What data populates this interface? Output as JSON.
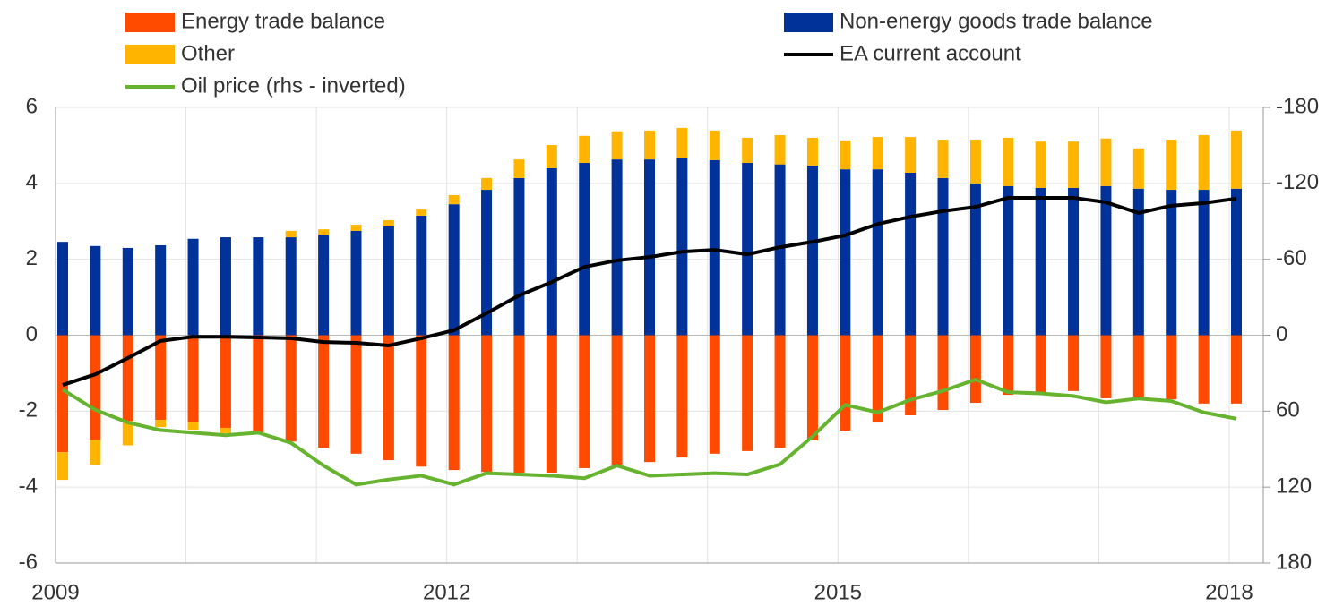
{
  "chart_data": {
    "type": "bar",
    "categories": [
      "2009",
      null,
      null,
      null,
      null,
      null,
      null,
      null,
      null,
      null,
      null,
      null,
      "2012",
      null,
      null,
      null,
      null,
      null,
      null,
      null,
      null,
      null,
      null,
      null,
      "2015",
      null,
      null,
      null,
      null,
      null,
      null,
      null,
      null,
      null,
      null,
      null,
      "2018"
    ],
    "ylim": [
      -6,
      6
    ],
    "yticks": [
      -6,
      -4,
      -2,
      0,
      2,
      4,
      6
    ],
    "y2lim": [
      180,
      -180
    ],
    "y2ticks": [
      -180,
      -120,
      -60,
      0,
      60,
      120,
      180
    ],
    "grid": true,
    "series": [
      {
        "name": "Energy trade balance",
        "type": "bar",
        "color": "#ff4b00",
        "values": [
          -3.08,
          -2.75,
          -2.26,
          -2.23,
          -2.3,
          -2.44,
          -2.56,
          -2.8,
          -2.96,
          -3.12,
          -3.29,
          -3.46,
          -3.55,
          -3.6,
          -3.62,
          -3.62,
          -3.5,
          -3.41,
          -3.34,
          -3.22,
          -3.12,
          -3.05,
          -2.96,
          -2.77,
          -2.51,
          -2.3,
          -2.11,
          -1.97,
          -1.78,
          -1.57,
          -1.52,
          -1.47,
          -1.66,
          -1.62,
          -1.69,
          -1.8,
          -1.8
        ]
      },
      {
        "name": "Non-energy goods trade balance",
        "type": "bar",
        "color": "#003299",
        "values": [
          2.46,
          2.35,
          2.3,
          2.37,
          2.54,
          2.58,
          2.58,
          2.58,
          2.65,
          2.75,
          2.87,
          3.15,
          3.45,
          3.83,
          4.14,
          4.4,
          4.54,
          4.63,
          4.63,
          4.68,
          4.61,
          4.54,
          4.5,
          4.47,
          4.37,
          4.37,
          4.28,
          4.14,
          4.0,
          3.93,
          3.88,
          3.88,
          3.93,
          3.86,
          3.83,
          3.83,
          3.86
        ]
      },
      {
        "name": "Other",
        "type": "bar",
        "color": "#ffb400",
        "values": [
          -0.73,
          -0.66,
          -0.64,
          -0.19,
          -0.19,
          -0.14,
          -0.05,
          0.17,
          0.14,
          0.16,
          0.16,
          0.16,
          0.24,
          0.31,
          0.49,
          0.61,
          0.71,
          0.74,
          0.76,
          0.78,
          0.78,
          0.66,
          0.77,
          0.73,
          0.76,
          0.85,
          0.94,
          1.01,
          1.15,
          1.27,
          1.22,
          1.22,
          1.25,
          1.06,
          1.32,
          1.44,
          1.53
        ]
      },
      {
        "name": "EA current account",
        "type": "line",
        "color": "#000000",
        "values": [
          -1.31,
          -1.03,
          -0.6,
          -0.15,
          -0.04,
          -0.04,
          -0.06,
          -0.08,
          -0.18,
          -0.2,
          -0.27,
          -0.08,
          0.13,
          0.58,
          1.05,
          1.4,
          1.8,
          1.97,
          2.06,
          2.2,
          2.25,
          2.13,
          2.32,
          2.46,
          2.63,
          2.93,
          3.12,
          3.27,
          3.38,
          3.62,
          3.62,
          3.62,
          3.5,
          3.22,
          3.41,
          3.48,
          3.6
        ]
      },
      {
        "name": "Oil price (rhs - inverted)",
        "type": "line",
        "axis": "y2",
        "color": "#65b32e",
        "values": [
          43,
          59,
          69,
          75,
          77,
          79,
          77,
          85,
          103,
          118,
          114,
          111,
          118,
          109,
          110,
          111,
          113,
          103,
          111,
          110,
          109,
          110,
          102,
          80,
          55,
          61,
          51,
          44,
          35,
          45,
          46,
          48,
          53,
          50,
          52,
          61,
          66
        ]
      }
    ]
  }
}
